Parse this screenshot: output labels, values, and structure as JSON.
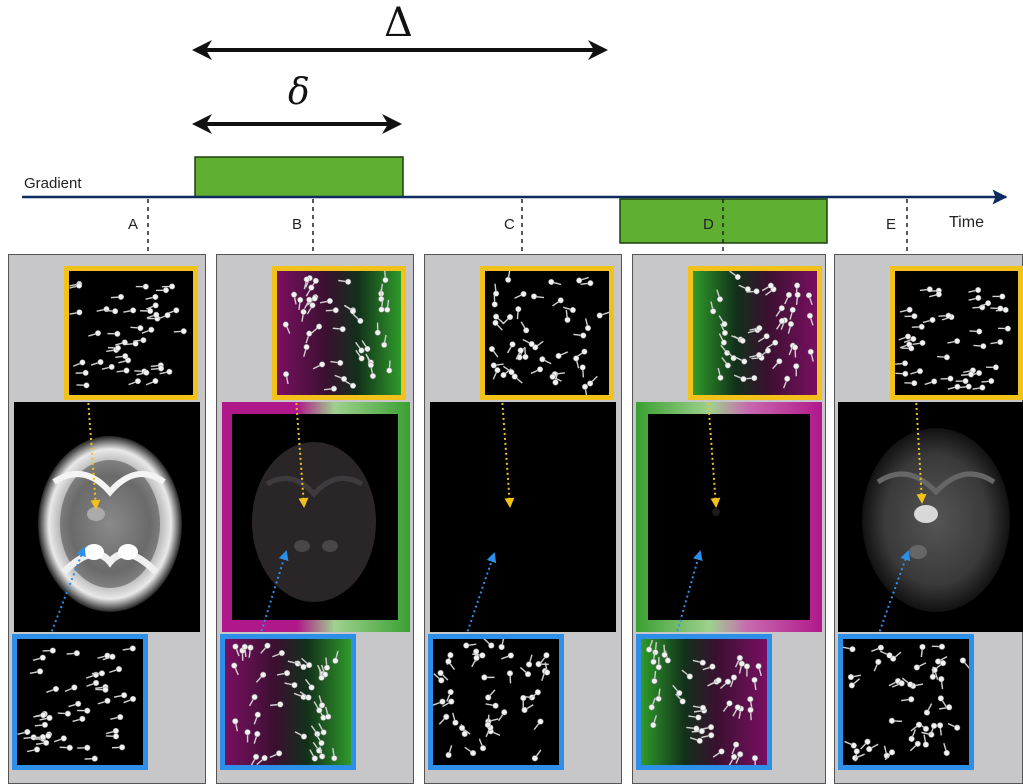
{
  "header": {
    "big_delta": "Δ",
    "small_delta": "δ"
  },
  "axis": {
    "gradient_label": "Gradient",
    "time_label": "Time"
  },
  "timepoints": [
    "A",
    "B",
    "C",
    "D",
    "E"
  ],
  "panels": [
    {
      "label": "A",
      "gradient_color": "none",
      "spin_phase": "aligned",
      "brain_signal": "bright"
    },
    {
      "label": "B",
      "gradient_color": "magenta-green",
      "spin_phase": "dephased",
      "brain_signal": "dim"
    },
    {
      "label": "C",
      "gradient_color": "none",
      "spin_phase": "random",
      "brain_signal": "dark"
    },
    {
      "label": "D",
      "gradient_color": "green-magenta",
      "spin_phase": "rephasing",
      "brain_signal": "dark"
    },
    {
      "label": "E",
      "gradient_color": "none",
      "spin_phase": "aligned",
      "brain_signal": "restricted-bright"
    }
  ],
  "colors": {
    "gradient_pulse": "#5fb030",
    "yellow_frame": "#f2c21a",
    "blue_frame": "#2e8fe8",
    "panel_bg": "#c7c6c9",
    "magenta": "#b0188a",
    "green": "#3aa032"
  }
}
